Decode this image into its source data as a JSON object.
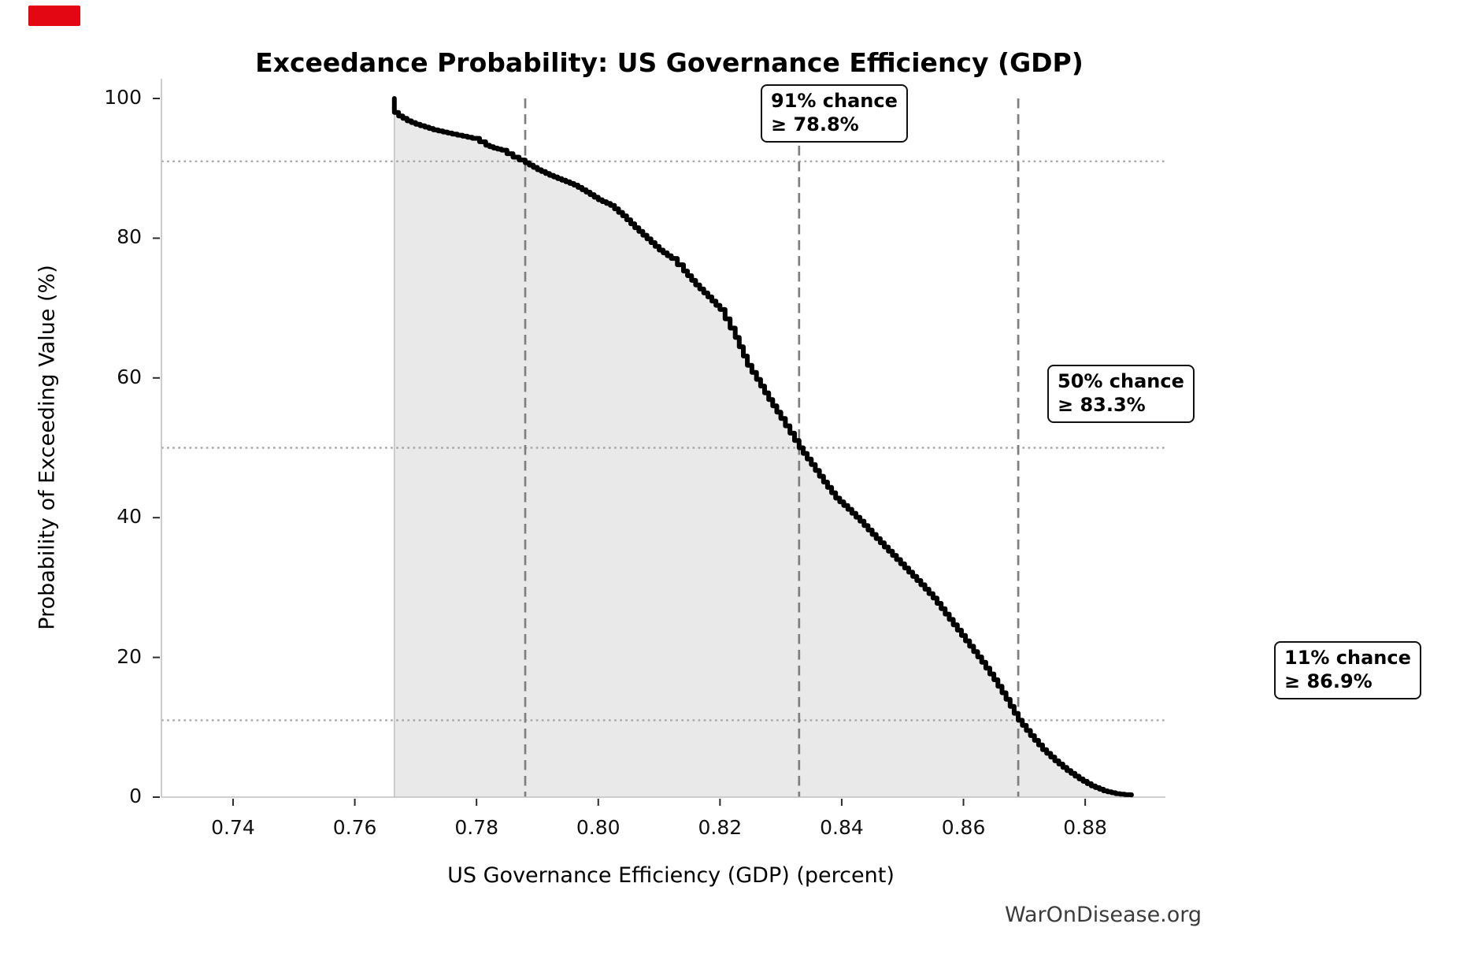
{
  "page": {
    "background": "#ffffff",
    "watermark": "WarOnDisease.org"
  },
  "red_marker": {
    "visible": true
  },
  "colors": {
    "curve": "#000000",
    "fill": "#e9e9e9",
    "fill_edge": "#c4c4c4",
    "dashed_line": "#7f7f7f",
    "dotted_line": "#a9a9a9",
    "spine": "#bfbfbf",
    "tick_mark": "#2b2b2b",
    "text": "#000000",
    "watermark_text": "#3c3c3c",
    "annotation_border": "#111111",
    "annotation_bg": "#ffffff",
    "red_marker": "#e30613"
  },
  "chart_data": {
    "type": "line",
    "subtype": "exceedance-survival-curve",
    "title": "Exceedance Probability: US Governance Efficiency (GDP)",
    "xlabel": "US Governance Efficiency (GDP) (percent)",
    "ylabel": "Probability of Exceeding Value (%)",
    "xlim": [
      0.72823,
      0.89318
    ],
    "ylim": [
      0,
      102.5
    ],
    "grid": "reference lines only",
    "legend": "none",
    "x_ticks": [
      0.74,
      0.76,
      0.78,
      0.8,
      0.82,
      0.84,
      0.86,
      0.88
    ],
    "x_tick_labels": [
      "0.74",
      "0.76",
      "0.78",
      "0.80",
      "0.82",
      "0.84",
      "0.86",
      "0.88"
    ],
    "y_ticks": [
      0,
      20,
      40,
      60,
      80,
      100
    ],
    "y_tick_labels": [
      "0",
      "20",
      "40",
      "60",
      "80",
      "100"
    ],
    "series": [
      {
        "name": "exceedance probability curve",
        "style": "step",
        "filled_below": true,
        "points": [
          [
            0.7665,
            100
          ],
          [
            0.7665,
            98.0
          ],
          [
            0.7672,
            97.5
          ],
          [
            0.7686,
            96.8
          ],
          [
            0.77,
            96.3
          ],
          [
            0.7715,
            95.9
          ],
          [
            0.7729,
            95.5
          ],
          [
            0.7745,
            95.2
          ],
          [
            0.776,
            94.9
          ],
          [
            0.7777,
            94.6
          ],
          [
            0.7793,
            94.3
          ],
          [
            0.7805,
            93.8
          ],
          [
            0.7815,
            93.3
          ],
          [
            0.7828,
            92.9
          ],
          [
            0.7841,
            92.6
          ],
          [
            0.785,
            92.1
          ],
          [
            0.786,
            91.6
          ],
          [
            0.787,
            91.2
          ],
          [
            0.788,
            90.8
          ],
          [
            0.79,
            89.8
          ],
          [
            0.792,
            89.0
          ],
          [
            0.794,
            88.3
          ],
          [
            0.796,
            87.6
          ],
          [
            0.798,
            86.6
          ],
          [
            0.8,
            85.5
          ],
          [
            0.802,
            84.7
          ],
          [
            0.804,
            83.2
          ],
          [
            0.806,
            81.5
          ],
          [
            0.808,
            79.9
          ],
          [
            0.81,
            78.3
          ],
          [
            0.812,
            77.1
          ],
          [
            0.814,
            75.3
          ],
          [
            0.816,
            73.3
          ],
          [
            0.818,
            71.6
          ],
          [
            0.82,
            69.8
          ],
          [
            0.8225,
            65.8
          ],
          [
            0.8245,
            61.8
          ],
          [
            0.826,
            59.8
          ],
          [
            0.828,
            56.9
          ],
          [
            0.83,
            54.2
          ],
          [
            0.8315,
            52.1
          ],
          [
            0.833,
            50.0
          ],
          [
            0.835,
            47.6
          ],
          [
            0.837,
            45.1
          ],
          [
            0.839,
            42.8
          ],
          [
            0.841,
            41.2
          ],
          [
            0.843,
            39.5
          ],
          [
            0.845,
            37.6
          ],
          [
            0.847,
            35.8
          ],
          [
            0.849,
            34.0
          ],
          [
            0.851,
            32.2
          ],
          [
            0.853,
            30.4
          ],
          [
            0.855,
            28.5
          ],
          [
            0.857,
            26.2
          ],
          [
            0.859,
            23.9
          ],
          [
            0.861,
            21.6
          ],
          [
            0.863,
            19.3
          ],
          [
            0.865,
            16.8
          ],
          [
            0.867,
            14.0
          ],
          [
            0.869,
            11.0
          ],
          [
            0.871,
            8.8
          ],
          [
            0.873,
            6.8
          ],
          [
            0.875,
            5.2
          ],
          [
            0.877,
            3.8
          ],
          [
            0.879,
            2.6
          ],
          [
            0.881,
            1.6
          ],
          [
            0.883,
            0.9
          ],
          [
            0.885,
            0.5
          ],
          [
            0.8865,
            0.35
          ],
          [
            0.8876,
            0.3
          ]
        ]
      }
    ],
    "reference_lines": {
      "vertical_dashed_x": [
        0.788,
        0.833,
        0.869
      ],
      "horizontal_dotted_pct": [
        91,
        50,
        11
      ]
    },
    "annotations": [
      {
        "line1": "91% chance",
        "line2": "≥ 78.8%",
        "chance_pct": 91,
        "threshold_value_pct": 78.8
      },
      {
        "line1": "50% chance",
        "line2": "≥ 83.3%",
        "chance_pct": 50,
        "threshold_value_pct": 83.3
      },
      {
        "line1": "11% chance",
        "line2": "≥ 86.9%",
        "chance_pct": 11,
        "threshold_value_pct": 86.9
      }
    ]
  }
}
